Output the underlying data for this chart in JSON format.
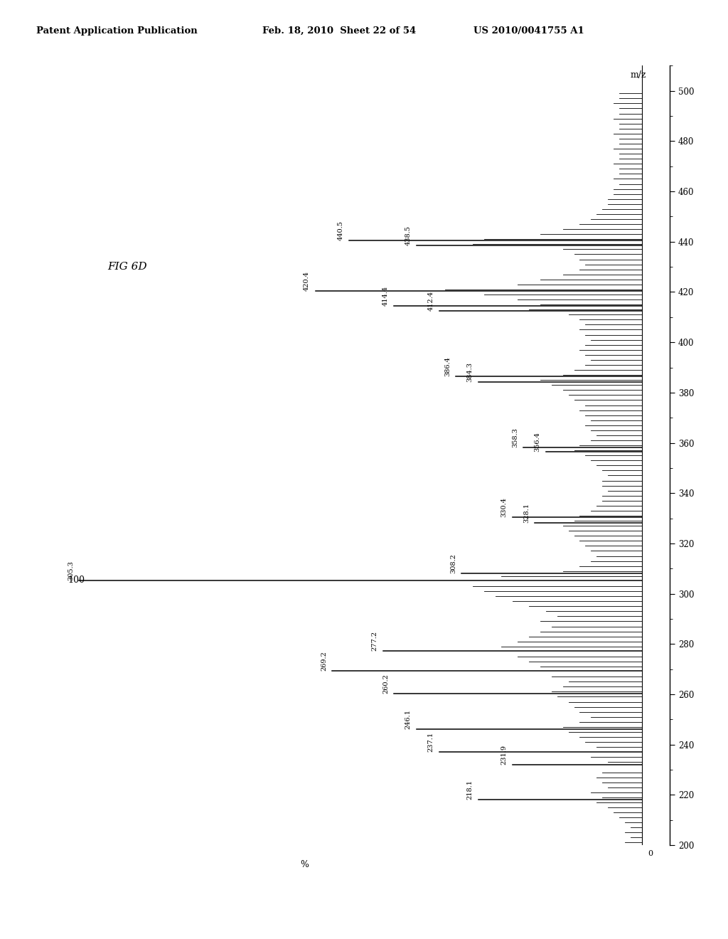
{
  "background_color": "#ffffff",
  "header_left": "Patent Application Publication",
  "header_mid": "Feb. 18, 2010  Sheet 22 of 54",
  "header_right": "US 2010/0041755 A1",
  "fig_label": "FIG 6D",
  "mz_label": "m/z",
  "pct_label": "%",
  "hundred_label": "100",
  "zero_label": "0",
  "mz_min": 200,
  "mz_max": 500,
  "mz_ticks": [
    200,
    220,
    240,
    260,
    280,
    300,
    320,
    340,
    360,
    380,
    400,
    420,
    440,
    460,
    480,
    500
  ],
  "peaks": [
    {
      "mz": 218.1,
      "intensity": 29,
      "label": "218.1"
    },
    {
      "mz": 231.9,
      "intensity": 23,
      "label": "231.9"
    },
    {
      "mz": 237.1,
      "intensity": 36,
      "label": "237.1"
    },
    {
      "mz": 246.1,
      "intensity": 40,
      "label": "246.1"
    },
    {
      "mz": 260.2,
      "intensity": 44,
      "label": "260.2"
    },
    {
      "mz": 269.2,
      "intensity": 55,
      "label": "269.2"
    },
    {
      "mz": 277.2,
      "intensity": 46,
      "label": "277.2"
    },
    {
      "mz": 305.3,
      "intensity": 100,
      "label": "305.3"
    },
    {
      "mz": 308.2,
      "intensity": 32,
      "label": "308.2"
    },
    {
      "mz": 328.1,
      "intensity": 19,
      "label": "328.1"
    },
    {
      "mz": 330.4,
      "intensity": 23,
      "label": "330.4"
    },
    {
      "mz": 356.4,
      "intensity": 17,
      "label": "356.4"
    },
    {
      "mz": 358.3,
      "intensity": 21,
      "label": "358.3"
    },
    {
      "mz": 384.3,
      "intensity": 29,
      "label": "384.3"
    },
    {
      "mz": 386.4,
      "intensity": 33,
      "label": "386.4"
    },
    {
      "mz": 412.4,
      "intensity": 36,
      "label": "412.4"
    },
    {
      "mz": 414.4,
      "intensity": 44,
      "label": "414.4"
    },
    {
      "mz": 420.4,
      "intensity": 58,
      "label": "420.4"
    },
    {
      "mz": 438.5,
      "intensity": 40,
      "label": "438.5"
    },
    {
      "mz": 440.5,
      "intensity": 52,
      "label": "440.5"
    }
  ],
  "noise_peaks": [
    {
      "mz": 201,
      "intensity": 3
    },
    {
      "mz": 203,
      "intensity": 2
    },
    {
      "mz": 205,
      "intensity": 3
    },
    {
      "mz": 207,
      "intensity": 2
    },
    {
      "mz": 209,
      "intensity": 3
    },
    {
      "mz": 211,
      "intensity": 4
    },
    {
      "mz": 213,
      "intensity": 5
    },
    {
      "mz": 215,
      "intensity": 6
    },
    {
      "mz": 217,
      "intensity": 8
    },
    {
      "mz": 219,
      "intensity": 7
    },
    {
      "mz": 221,
      "intensity": 9
    },
    {
      "mz": 223,
      "intensity": 6
    },
    {
      "mz": 225,
      "intensity": 7
    },
    {
      "mz": 227,
      "intensity": 8
    },
    {
      "mz": 229,
      "intensity": 7
    },
    {
      "mz": 233,
      "intensity": 6
    },
    {
      "mz": 235,
      "intensity": 9
    },
    {
      "mz": 239,
      "intensity": 8
    },
    {
      "mz": 241,
      "intensity": 10
    },
    {
      "mz": 243,
      "intensity": 11
    },
    {
      "mz": 245,
      "intensity": 13
    },
    {
      "mz": 247,
      "intensity": 14
    },
    {
      "mz": 249,
      "intensity": 11
    },
    {
      "mz": 251,
      "intensity": 9
    },
    {
      "mz": 253,
      "intensity": 11
    },
    {
      "mz": 255,
      "intensity": 12
    },
    {
      "mz": 257,
      "intensity": 13
    },
    {
      "mz": 259,
      "intensity": 15
    },
    {
      "mz": 261,
      "intensity": 16
    },
    {
      "mz": 263,
      "intensity": 14
    },
    {
      "mz": 265,
      "intensity": 13
    },
    {
      "mz": 267,
      "intensity": 16
    },
    {
      "mz": 271,
      "intensity": 18
    },
    {
      "mz": 273,
      "intensity": 20
    },
    {
      "mz": 275,
      "intensity": 22
    },
    {
      "mz": 279,
      "intensity": 25
    },
    {
      "mz": 281,
      "intensity": 22
    },
    {
      "mz": 283,
      "intensity": 20
    },
    {
      "mz": 285,
      "intensity": 18
    },
    {
      "mz": 287,
      "intensity": 16
    },
    {
      "mz": 289,
      "intensity": 18
    },
    {
      "mz": 291,
      "intensity": 15
    },
    {
      "mz": 293,
      "intensity": 17
    },
    {
      "mz": 295,
      "intensity": 20
    },
    {
      "mz": 297,
      "intensity": 23
    },
    {
      "mz": 299,
      "intensity": 26
    },
    {
      "mz": 301,
      "intensity": 28
    },
    {
      "mz": 303,
      "intensity": 30
    },
    {
      "mz": 307,
      "intensity": 25
    },
    {
      "mz": 309,
      "intensity": 14
    },
    {
      "mz": 311,
      "intensity": 11
    },
    {
      "mz": 313,
      "intensity": 9
    },
    {
      "mz": 315,
      "intensity": 8
    },
    {
      "mz": 317,
      "intensity": 9
    },
    {
      "mz": 319,
      "intensity": 10
    },
    {
      "mz": 321,
      "intensity": 11
    },
    {
      "mz": 323,
      "intensity": 12
    },
    {
      "mz": 325,
      "intensity": 13
    },
    {
      "mz": 327,
      "intensity": 14
    },
    {
      "mz": 329,
      "intensity": 12
    },
    {
      "mz": 331,
      "intensity": 11
    },
    {
      "mz": 333,
      "intensity": 9
    },
    {
      "mz": 335,
      "intensity": 8
    },
    {
      "mz": 337,
      "intensity": 7
    },
    {
      "mz": 339,
      "intensity": 7
    },
    {
      "mz": 341,
      "intensity": 6
    },
    {
      "mz": 343,
      "intensity": 7
    },
    {
      "mz": 345,
      "intensity": 7
    },
    {
      "mz": 347,
      "intensity": 6
    },
    {
      "mz": 349,
      "intensity": 7
    },
    {
      "mz": 351,
      "intensity": 8
    },
    {
      "mz": 353,
      "intensity": 9
    },
    {
      "mz": 355,
      "intensity": 10
    },
    {
      "mz": 357,
      "intensity": 12
    },
    {
      "mz": 359,
      "intensity": 11
    },
    {
      "mz": 361,
      "intensity": 9
    },
    {
      "mz": 363,
      "intensity": 8
    },
    {
      "mz": 365,
      "intensity": 9
    },
    {
      "mz": 367,
      "intensity": 10
    },
    {
      "mz": 369,
      "intensity": 9
    },
    {
      "mz": 371,
      "intensity": 10
    },
    {
      "mz": 373,
      "intensity": 11
    },
    {
      "mz": 375,
      "intensity": 10
    },
    {
      "mz": 377,
      "intensity": 12
    },
    {
      "mz": 379,
      "intensity": 13
    },
    {
      "mz": 381,
      "intensity": 14
    },
    {
      "mz": 383,
      "intensity": 16
    },
    {
      "mz": 385,
      "intensity": 18
    },
    {
      "mz": 387,
      "intensity": 14
    },
    {
      "mz": 389,
      "intensity": 12
    },
    {
      "mz": 391,
      "intensity": 10
    },
    {
      "mz": 393,
      "intensity": 9
    },
    {
      "mz": 395,
      "intensity": 10
    },
    {
      "mz": 397,
      "intensity": 11
    },
    {
      "mz": 399,
      "intensity": 10
    },
    {
      "mz": 401,
      "intensity": 9
    },
    {
      "mz": 403,
      "intensity": 10
    },
    {
      "mz": 405,
      "intensity": 11
    },
    {
      "mz": 407,
      "intensity": 10
    },
    {
      "mz": 409,
      "intensity": 11
    },
    {
      "mz": 411,
      "intensity": 13
    },
    {
      "mz": 413,
      "intensity": 20
    },
    {
      "mz": 415,
      "intensity": 18
    },
    {
      "mz": 417,
      "intensity": 22
    },
    {
      "mz": 419,
      "intensity": 28
    },
    {
      "mz": 421,
      "intensity": 35
    },
    {
      "mz": 423,
      "intensity": 22
    },
    {
      "mz": 425,
      "intensity": 18
    },
    {
      "mz": 427,
      "intensity": 14
    },
    {
      "mz": 429,
      "intensity": 11
    },
    {
      "mz": 431,
      "intensity": 10
    },
    {
      "mz": 433,
      "intensity": 11
    },
    {
      "mz": 435,
      "intensity": 12
    },
    {
      "mz": 437,
      "intensity": 14
    },
    {
      "mz": 439,
      "intensity": 30
    },
    {
      "mz": 441,
      "intensity": 28
    },
    {
      "mz": 443,
      "intensity": 18
    },
    {
      "mz": 445,
      "intensity": 14
    },
    {
      "mz": 447,
      "intensity": 11
    },
    {
      "mz": 449,
      "intensity": 9
    },
    {
      "mz": 451,
      "intensity": 8
    },
    {
      "mz": 453,
      "intensity": 7
    },
    {
      "mz": 455,
      "intensity": 6
    },
    {
      "mz": 457,
      "intensity": 6
    },
    {
      "mz": 459,
      "intensity": 5
    },
    {
      "mz": 461,
      "intensity": 5
    },
    {
      "mz": 463,
      "intensity": 4
    },
    {
      "mz": 465,
      "intensity": 5
    },
    {
      "mz": 467,
      "intensity": 4
    },
    {
      "mz": 469,
      "intensity": 4
    },
    {
      "mz": 471,
      "intensity": 5
    },
    {
      "mz": 473,
      "intensity": 4
    },
    {
      "mz": 475,
      "intensity": 4
    },
    {
      "mz": 477,
      "intensity": 5
    },
    {
      "mz": 479,
      "intensity": 4
    },
    {
      "mz": 481,
      "intensity": 4
    },
    {
      "mz": 483,
      "intensity": 5
    },
    {
      "mz": 485,
      "intensity": 4
    },
    {
      "mz": 487,
      "intensity": 4
    },
    {
      "mz": 489,
      "intensity": 5
    },
    {
      "mz": 491,
      "intensity": 4
    },
    {
      "mz": 493,
      "intensity": 4
    },
    {
      "mz": 495,
      "intensity": 5
    },
    {
      "mz": 497,
      "intensity": 4
    },
    {
      "mz": 499,
      "intensity": 4
    }
  ]
}
